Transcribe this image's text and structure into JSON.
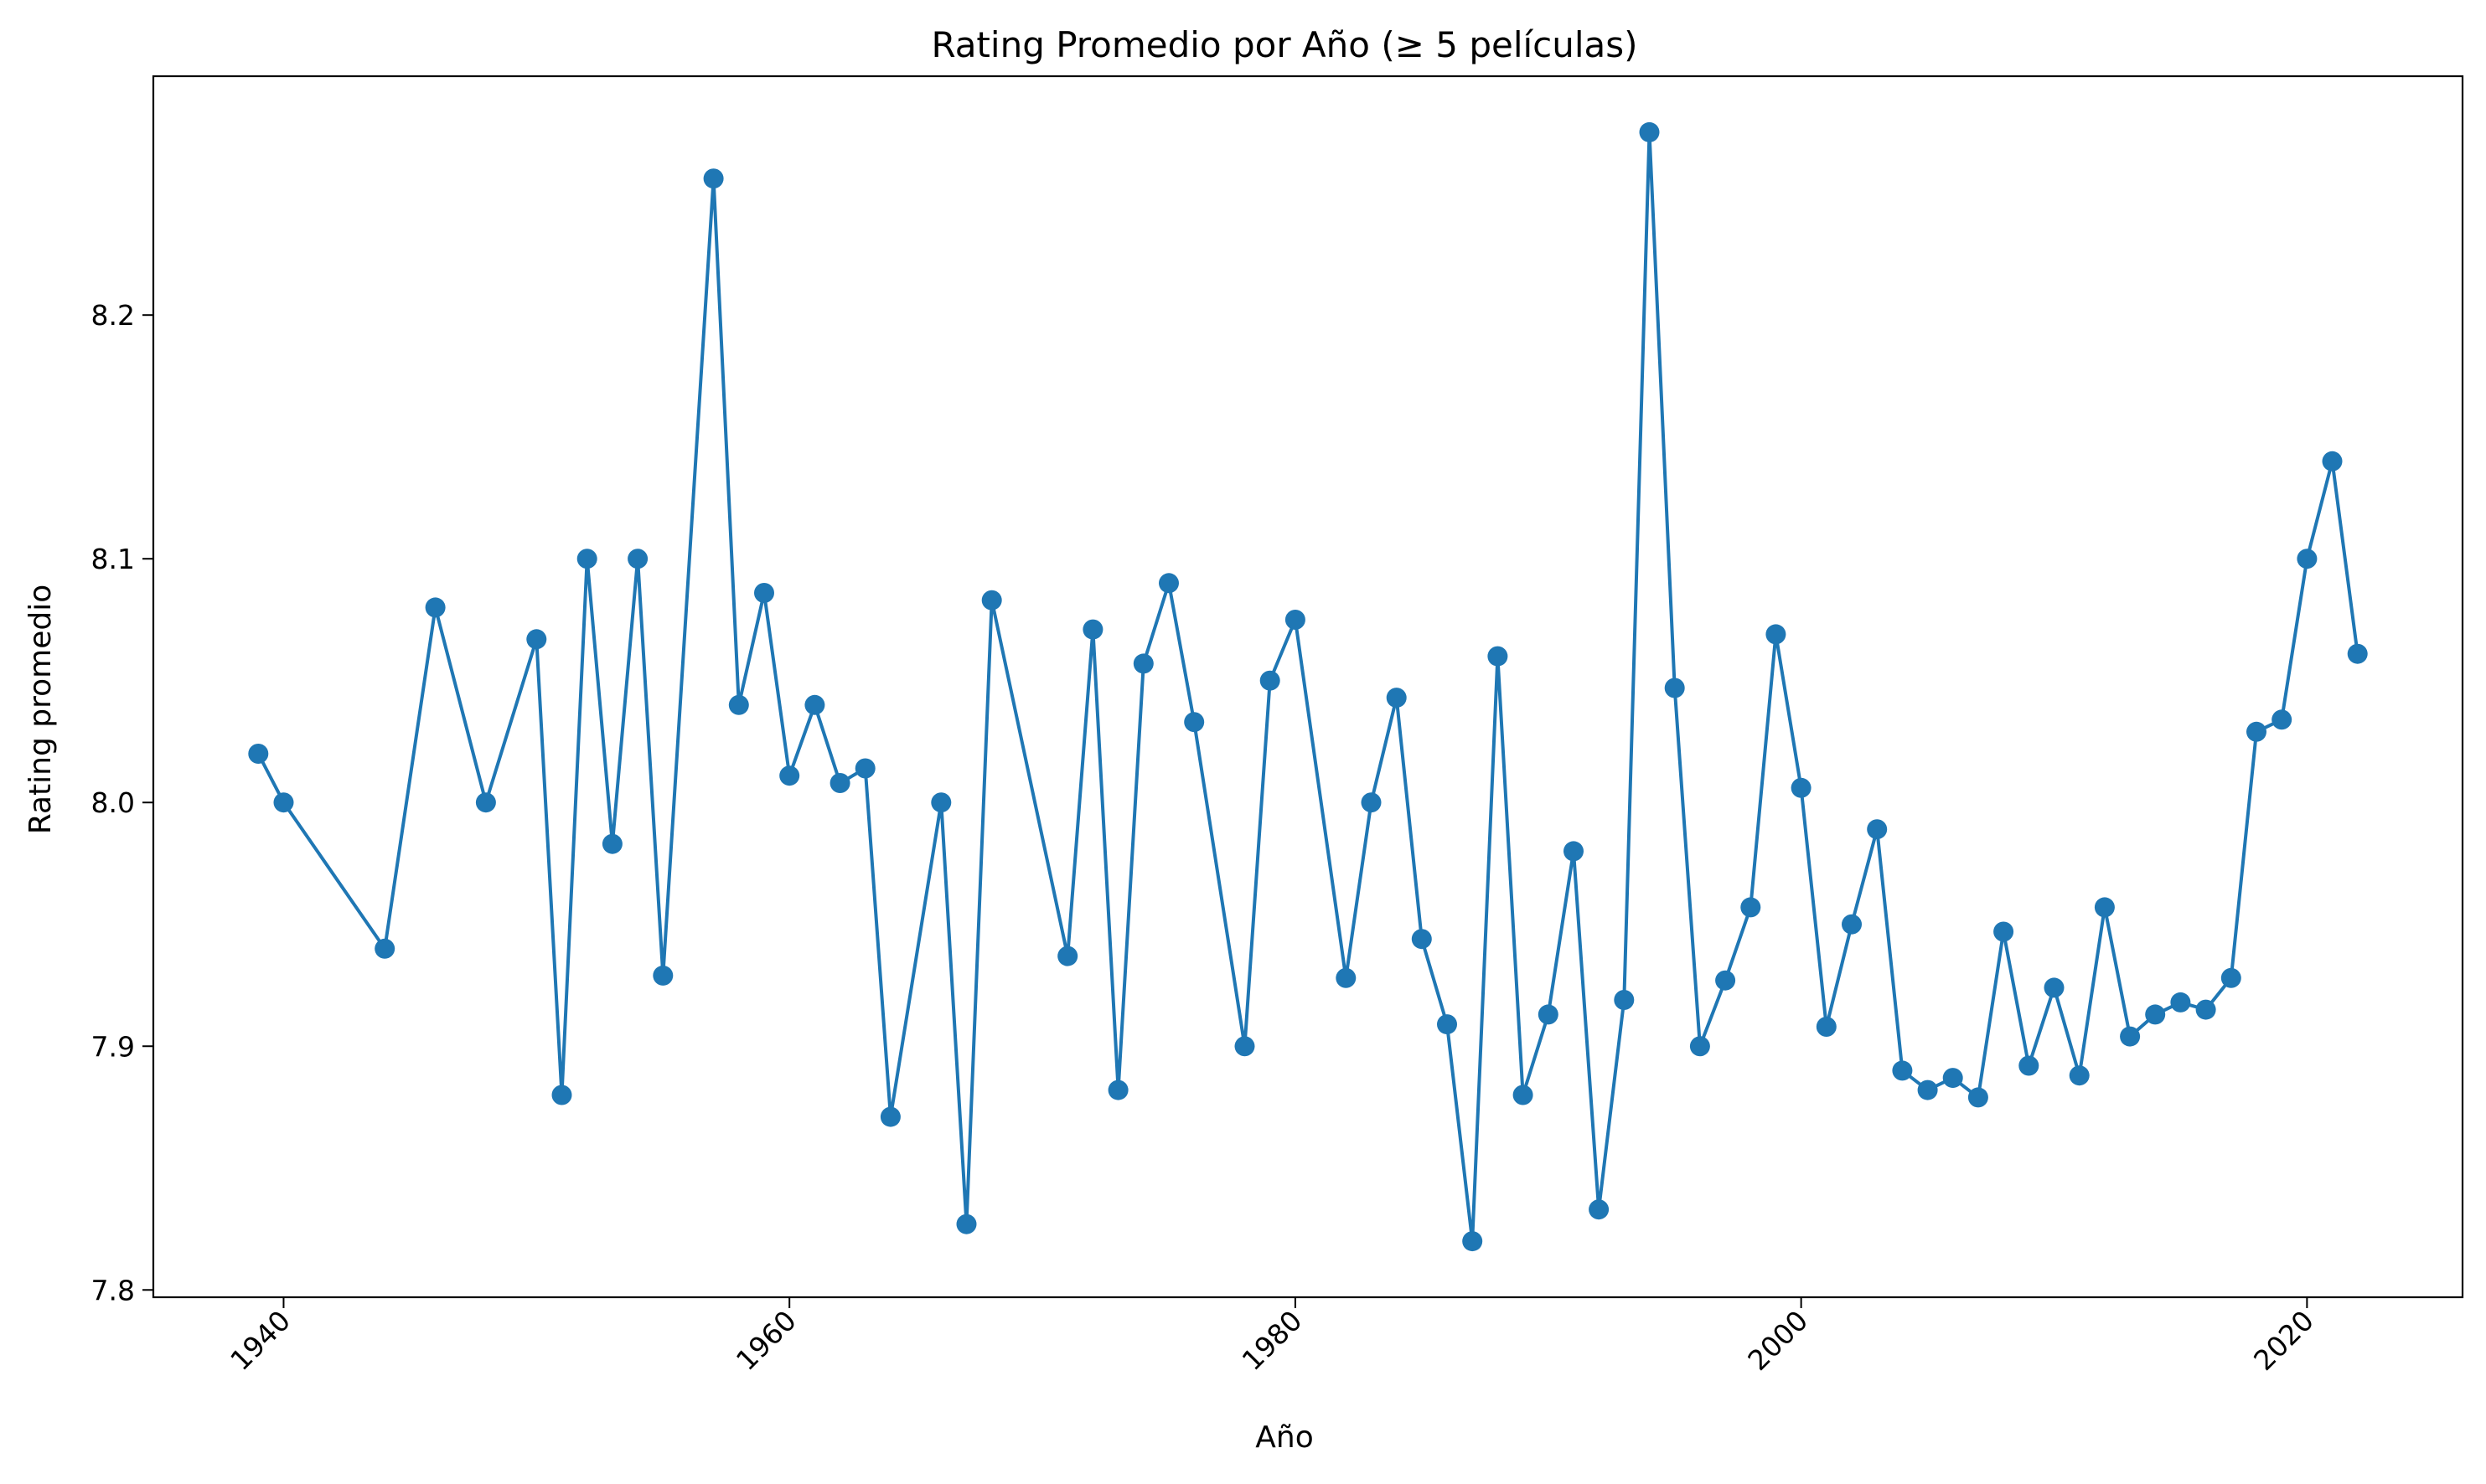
{
  "chart_data": {
    "type": "line",
    "title": "Rating Promedio por Año (≥ 5 películas)",
    "xlabel": "Año",
    "ylabel": "Rating promedio",
    "xlim": [
      1934.85,
      2026.15
    ],
    "ylim": [
      7.797,
      8.298
    ],
    "x_ticks": [
      1940,
      1960,
      1980,
      2000,
      2020
    ],
    "x_tick_labels": [
      "1940",
      "1960",
      "1980",
      "2000",
      "2020"
    ],
    "y_ticks": [
      7.8,
      7.9,
      8.0,
      8.1,
      8.2
    ],
    "y_tick_labels": [
      "7.8",
      "7.9",
      "8.0",
      "8.1",
      "8.2"
    ],
    "grid": false,
    "legend": "none",
    "series_color": "#1f77b4",
    "marker": "circle",
    "series": [
      {
        "points": [
          [
            1939,
            8.02
          ],
          [
            1940,
            8.0
          ],
          [
            1944,
            7.94
          ],
          [
            1946,
            8.08
          ],
          [
            1948,
            8.0
          ],
          [
            1950,
            8.067
          ],
          [
            1951,
            7.88
          ],
          [
            1952,
            8.1
          ],
          [
            1953,
            7.983
          ],
          [
            1954,
            8.1
          ],
          [
            1955,
            7.929
          ],
          [
            1957,
            8.256
          ],
          [
            1958,
            8.04
          ],
          [
            1959,
            8.086
          ],
          [
            1960,
            8.011
          ],
          [
            1961,
            8.04
          ],
          [
            1962,
            8.008
          ],
          [
            1963,
            8.014
          ],
          [
            1964,
            7.871
          ],
          [
            1966,
            8.0
          ],
          [
            1967,
            7.827
          ],
          [
            1968,
            8.083
          ],
          [
            1971,
            7.937
          ],
          [
            1972,
            8.071
          ],
          [
            1973,
            7.882
          ],
          [
            1974,
            8.057
          ],
          [
            1975,
            8.09
          ],
          [
            1976,
            8.033
          ],
          [
            1978,
            7.9
          ],
          [
            1979,
            8.05
          ],
          [
            1980,
            8.075
          ],
          [
            1982,
            7.928
          ],
          [
            1983,
            8.0
          ],
          [
            1984,
            8.043
          ],
          [
            1985,
            7.944
          ],
          [
            1986,
            7.909
          ],
          [
            1987,
            7.82
          ],
          [
            1988,
            8.06
          ],
          [
            1989,
            7.88
          ],
          [
            1990,
            7.913
          ],
          [
            1991,
            7.98
          ],
          [
            1992,
            7.833
          ],
          [
            1993,
            7.919
          ],
          [
            1994,
            8.275
          ],
          [
            1995,
            8.047
          ],
          [
            1996,
            7.9
          ],
          [
            1997,
            7.927
          ],
          [
            1998,
            7.957
          ],
          [
            1999,
            8.069
          ],
          [
            2000,
            8.006
          ],
          [
            2001,
            7.908
          ],
          [
            2002,
            7.95
          ],
          [
            2003,
            7.989
          ],
          [
            2004,
            7.89
          ],
          [
            2005,
            7.882
          ],
          [
            2006,
            7.887
          ],
          [
            2007,
            7.879
          ],
          [
            2008,
            7.947
          ],
          [
            2009,
            7.892
          ],
          [
            2010,
            7.924
          ],
          [
            2011,
            7.888
          ],
          [
            2012,
            7.957
          ],
          [
            2013,
            7.904
          ],
          [
            2014,
            7.913
          ],
          [
            2015,
            7.918
          ],
          [
            2016,
            7.915
          ],
          [
            2017,
            7.928
          ],
          [
            2018,
            8.029
          ],
          [
            2019,
            8.034
          ],
          [
            2020,
            8.1
          ],
          [
            2021,
            8.14
          ],
          [
            2022,
            8.061
          ]
        ]
      }
    ]
  }
}
